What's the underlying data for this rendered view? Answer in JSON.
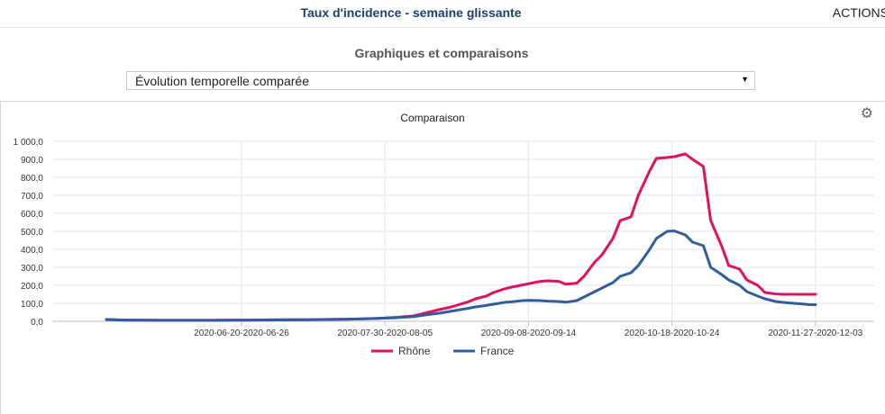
{
  "header": {
    "title": "Taux d'incidence - semaine glissante",
    "actions_label": "ACTIONS"
  },
  "section": {
    "title": "Graphiques et comparaisons",
    "select_value": "Évolution temporelle comparée"
  },
  "icons": {
    "settings": "gear-icon",
    "dropdown": "caret-down-icon"
  },
  "chart_data": {
    "type": "line",
    "title": "Comparaison",
    "ylim": [
      0,
      1000
    ],
    "yticks": [
      0,
      100,
      200,
      300,
      400,
      500,
      600,
      700,
      800,
      900,
      1000
    ],
    "ytick_labels": [
      "0,0",
      "100,0",
      "200,0",
      "300,0",
      "400,0",
      "500,0",
      "600,0",
      "700,0",
      "800,0",
      "900,0",
      "1 000,0"
    ],
    "xtick_labels": [
      "2020-06-20-2020-06-26",
      "2020-07-30-2020-08-05",
      "2020-09-08-2020-09-14",
      "2020-10-18-2020-10-24",
      "2020-11-27-2020-12-03"
    ],
    "xtick_positions": [
      30,
      70,
      110,
      150,
      190
    ],
    "x": [
      0,
      5,
      10,
      15,
      20,
      25,
      30,
      35,
      40,
      45,
      50,
      55,
      60,
      65,
      70,
      75,
      80,
      85,
      88,
      90,
      92,
      95,
      97,
      100,
      102,
      105,
      107,
      110,
      112,
      115,
      117,
      120,
      122,
      125,
      127,
      130,
      132,
      135,
      137,
      140,
      142,
      145,
      147,
      150,
      152,
      155,
      157,
      160,
      162,
      165,
      167,
      170,
      172,
      175,
      177,
      180,
      182,
      185,
      187,
      190,
      192,
      194,
      196
    ],
    "grid": true,
    "legend": "bottom",
    "series": [
      {
        "name": "Rhône",
        "color": "#e0115f",
        "values": [
          10,
          7,
          6,
          6,
          6,
          6,
          6,
          7,
          7,
          8,
          9,
          9,
          10,
          11,
          13,
          16,
          22,
          30,
          45,
          55,
          65,
          78,
          90,
          108,
          125,
          140,
          160,
          180,
          190,
          202,
          210,
          222,
          225,
          222,
          206,
          212,
          250,
          330,
          370,
          460,
          560,
          580,
          700,
          830,
          905,
          910,
          915,
          930,
          900,
          860,
          560,
          420,
          310,
          290,
          230,
          200,
          160,
          152,
          150,
          150,
          150,
          150,
          150
        ]
      },
      {
        "name": "France",
        "color": "#2f5d9e",
        "values": [
          10,
          6,
          6,
          5,
          5,
          5,
          5,
          6,
          6,
          7,
          8,
          9,
          10,
          11,
          13,
          16,
          20,
          26,
          35,
          40,
          45,
          55,
          62,
          72,
          80,
          88,
          95,
          105,
          108,
          115,
          116,
          115,
          112,
          110,
          106,
          115,
          135,
          165,
          185,
          215,
          250,
          270,
          310,
          395,
          460,
          500,
          502,
          480,
          440,
          420,
          300,
          260,
          230,
          200,
          165,
          140,
          125,
          110,
          105,
          100,
          97,
          93,
          92
        ]
      }
    ]
  }
}
